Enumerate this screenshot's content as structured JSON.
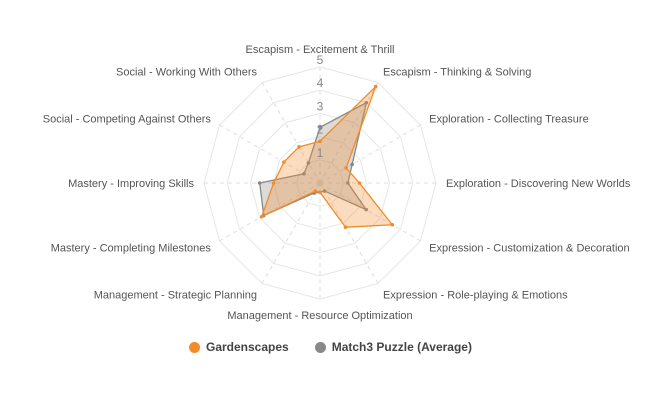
{
  "chart_data": {
    "type": "radar",
    "axes": [
      "Escapism - Excitement & Thrill",
      "Escapism - Thinking & Solving",
      "Exploration - Collecting Treasure",
      "Exploration - Discovering New Worlds",
      "Expression - Customization & Decoration",
      "Expression - Role-playing & Emotions",
      "Management - Resource Optimization",
      "Management - Strategic Planning",
      "Mastery - Completing Milestones",
      "Mastery - Improving Skills",
      "Social - Competing Against Others",
      "Social - Working With Others"
    ],
    "ticks": [
      "1",
      "2",
      "3",
      "4",
      "5"
    ],
    "rmax": 5,
    "series": [
      {
        "name": "Gardenscapes",
        "color": "#f28c28",
        "values": [
          1.8,
          4.8,
          1.3,
          1.7,
          3.6,
          2.2,
          0.4,
          0.4,
          2.9,
          2.0,
          1.8,
          1.8
        ]
      },
      {
        "name": "Match3 Puzzle (Average)",
        "color": "#888888",
        "values": [
          2.4,
          4.0,
          1.6,
          1.2,
          2.3,
          0.4,
          0.4,
          0.5,
          2.8,
          2.6,
          0.8,
          1.0
        ]
      }
    ]
  }
}
